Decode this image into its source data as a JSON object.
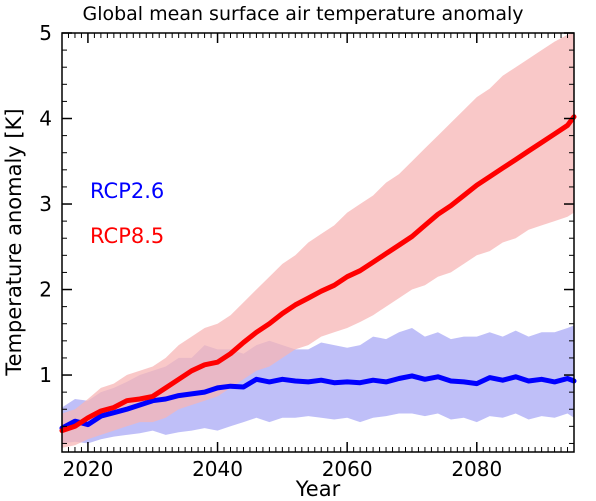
{
  "chart_data": {
    "type": "line",
    "title": "Global mean surface air temperature anomaly",
    "xlabel": "Year",
    "ylabel": "Temperature anomaly [K]",
    "xlim": [
      2016,
      2095
    ],
    "ylim": [
      0.1,
      5
    ],
    "x_ticks": [
      2020,
      2040,
      2060,
      2080
    ],
    "y_ticks": [
      1,
      2,
      3,
      4,
      5
    ],
    "x_tick_labels": [
      "2020",
      "2040",
      "2060",
      "2080"
    ],
    "y_tick_labels": [
      "1",
      "2",
      "3",
      "4",
      "5"
    ],
    "grid": false,
    "legend_placement": "left",
    "series": [
      {
        "name": "RCP2.6",
        "color": "#0000ff",
        "band_color": "#a9a9f5",
        "x": [
          2016,
          2018,
          2020,
          2022,
          2024,
          2026,
          2028,
          2030,
          2032,
          2034,
          2036,
          2038,
          2040,
          2042,
          2044,
          2046,
          2048,
          2050,
          2052,
          2054,
          2056,
          2058,
          2060,
          2062,
          2064,
          2066,
          2068,
          2070,
          2072,
          2074,
          2076,
          2078,
          2080,
          2082,
          2084,
          2086,
          2088,
          2090,
          2092,
          2094,
          2095
        ],
        "y": [
          0.38,
          0.46,
          0.42,
          0.52,
          0.56,
          0.6,
          0.65,
          0.7,
          0.72,
          0.76,
          0.78,
          0.8,
          0.85,
          0.87,
          0.86,
          0.95,
          0.92,
          0.95,
          0.93,
          0.92,
          0.94,
          0.91,
          0.92,
          0.91,
          0.94,
          0.92,
          0.96,
          0.99,
          0.95,
          0.98,
          0.93,
          0.92,
          0.9,
          0.97,
          0.94,
          0.98,
          0.93,
          0.95,
          0.92,
          0.96,
          0.93
        ],
        "upper": [
          0.62,
          0.72,
          0.7,
          0.8,
          0.85,
          0.92,
          1.0,
          1.05,
          1.1,
          1.2,
          1.2,
          1.35,
          1.3,
          1.3,
          1.25,
          1.35,
          1.4,
          1.35,
          1.3,
          1.3,
          1.38,
          1.35,
          1.32,
          1.35,
          1.45,
          1.42,
          1.5,
          1.55,
          1.45,
          1.5,
          1.42,
          1.45,
          1.45,
          1.5,
          1.45,
          1.52,
          1.45,
          1.5,
          1.5,
          1.55,
          1.58
        ],
        "lower": [
          0.2,
          0.22,
          0.2,
          0.25,
          0.28,
          0.3,
          0.32,
          0.35,
          0.3,
          0.33,
          0.35,
          0.38,
          0.35,
          0.4,
          0.45,
          0.5,
          0.45,
          0.5,
          0.5,
          0.52,
          0.5,
          0.48,
          0.5,
          0.45,
          0.5,
          0.52,
          0.55,
          0.55,
          0.52,
          0.55,
          0.48,
          0.5,
          0.45,
          0.52,
          0.5,
          0.55,
          0.48,
          0.52,
          0.5,
          0.55,
          0.5
        ]
      },
      {
        "name": "RCP8.5",
        "color": "#ff0000",
        "band_color": "#f7b5b5",
        "x": [
          2016,
          2018,
          2020,
          2022,
          2024,
          2026,
          2028,
          2030,
          2032,
          2034,
          2036,
          2038,
          2040,
          2042,
          2044,
          2046,
          2048,
          2050,
          2052,
          2054,
          2056,
          2058,
          2060,
          2062,
          2064,
          2066,
          2068,
          2070,
          2072,
          2074,
          2076,
          2078,
          2080,
          2082,
          2084,
          2086,
          2088,
          2090,
          2092,
          2094,
          2095
        ],
        "y": [
          0.35,
          0.4,
          0.5,
          0.58,
          0.62,
          0.7,
          0.72,
          0.75,
          0.85,
          0.95,
          1.05,
          1.12,
          1.15,
          1.25,
          1.38,
          1.5,
          1.6,
          1.72,
          1.82,
          1.9,
          1.98,
          2.05,
          2.15,
          2.22,
          2.32,
          2.42,
          2.52,
          2.62,
          2.75,
          2.88,
          2.98,
          3.1,
          3.22,
          3.32,
          3.42,
          3.52,
          3.62,
          3.72,
          3.82,
          3.92,
          4.02
        ],
        "upper": [
          0.55,
          0.6,
          0.72,
          0.85,
          0.9,
          1.0,
          1.05,
          1.1,
          1.2,
          1.35,
          1.45,
          1.55,
          1.6,
          1.7,
          1.85,
          2.0,
          2.15,
          2.3,
          2.4,
          2.55,
          2.65,
          2.75,
          2.9,
          3.0,
          3.1,
          3.25,
          3.35,
          3.5,
          3.65,
          3.8,
          3.95,
          4.1,
          4.25,
          4.35,
          4.5,
          4.6,
          4.7,
          4.8,
          4.9,
          4.98,
          5.0
        ],
        "lower": [
          0.15,
          0.18,
          0.25,
          0.3,
          0.35,
          0.4,
          0.45,
          0.45,
          0.5,
          0.6,
          0.65,
          0.7,
          0.75,
          0.85,
          0.95,
          1.05,
          1.1,
          1.2,
          1.3,
          1.35,
          1.45,
          1.5,
          1.55,
          1.62,
          1.7,
          1.8,
          1.9,
          2.0,
          2.05,
          2.15,
          2.2,
          2.3,
          2.4,
          2.45,
          2.55,
          2.6,
          2.7,
          2.75,
          2.8,
          2.85,
          2.9
        ]
      }
    ]
  }
}
